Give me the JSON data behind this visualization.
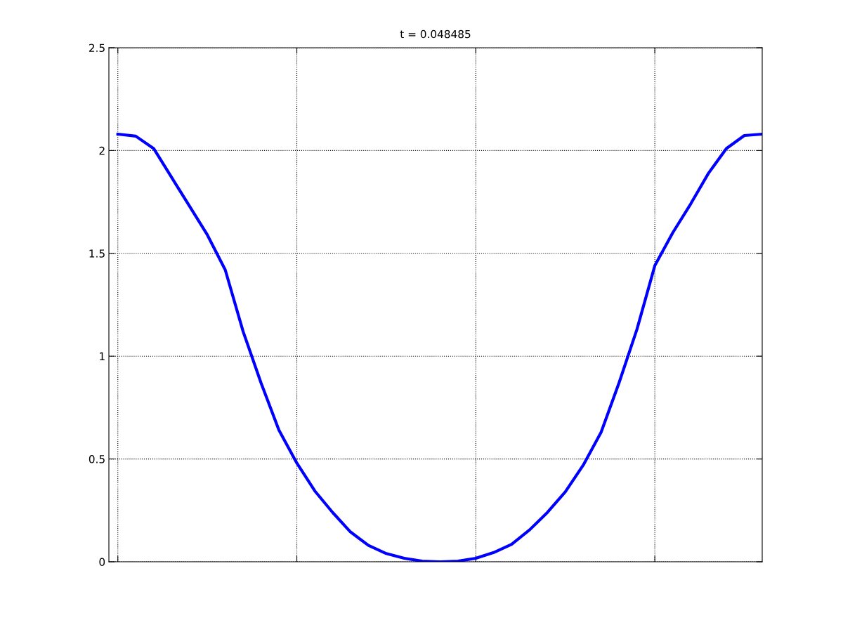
{
  "chart_data": {
    "type": "line",
    "title": "t = 0.048485",
    "categories": [
      null,
      null,
      null,
      null,
      null,
      null,
      null,
      null,
      null,
      null,
      null,
      null,
      null,
      null,
      null,
      null,
      null,
      null,
      null,
      null,
      null,
      null,
      null,
      null,
      null,
      null,
      null,
      null,
      null,
      null,
      null,
      null,
      null,
      null,
      null,
      null,
      null
    ],
    "series": [
      {
        "color": "#0000ff",
        "values": [
          2.08,
          2.07,
          2.01,
          1.87,
          1.73,
          1.59,
          1.42,
          1.12,
          0.87,
          0.64,
          0.48,
          0.345,
          0.24,
          0.145,
          0.08,
          0.04,
          0.017,
          0.003,
          0,
          0.003,
          0.017,
          0.045,
          0.085,
          0.155,
          0.24,
          0.34,
          0.47,
          0.63,
          0.87,
          1.13,
          1.44,
          1.6,
          1.74,
          1.89,
          2.01,
          2.073,
          2.08
        ]
      }
    ],
    "ylim": [
      0,
      2.5
    ],
    "yticks": [
      0,
      0.5,
      1,
      1.5,
      2,
      2.5
    ],
    "tick_labels": "y",
    "grid": true,
    "line_style": "solid"
  }
}
